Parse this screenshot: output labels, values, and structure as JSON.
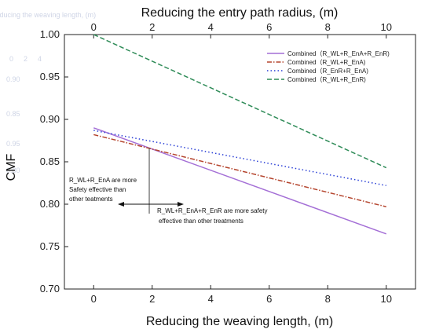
{
  "chart_data": {
    "type": "line",
    "title": "",
    "xlabel": "Reducing the weaving length, (m)",
    "x2label": "Reducing the entry path radius, (m)",
    "ylabel": "CMF",
    "xlim": [
      -1,
      11
    ],
    "ylim": [
      0.7,
      1.0
    ],
    "xticks": [
      0,
      2,
      4,
      6,
      8,
      10
    ],
    "yticks": [
      0.7,
      0.75,
      0.8,
      0.85,
      0.9,
      0.95,
      1.0
    ],
    "xtick_labels": [
      "0",
      "2",
      "4",
      "6",
      "8",
      "10"
    ],
    "ytick_labels": [
      "0.70",
      "0.75",
      "0.80",
      "0.85",
      "0.90",
      "0.95",
      "1.00"
    ],
    "grid": false,
    "legend": "top-right",
    "series": [
      {
        "name": "Combined（R_WL+R_EnA+R_EnR)",
        "color": "#a46fd6",
        "dash": "solid",
        "x": [
          0,
          10
        ],
        "y": [
          0.89,
          0.765
        ]
      },
      {
        "name": "Combined（R_WL+R_EnA)",
        "color": "#b5462f",
        "dash": "dashdot",
        "x": [
          0,
          10
        ],
        "y": [
          0.882,
          0.797
        ]
      },
      {
        "name": "Combined（R_EnR+R_EnA)",
        "color": "#2a3fd6",
        "dash": "dot",
        "x": [
          0,
          10
        ],
        "y": [
          0.887,
          0.822
        ]
      },
      {
        "name": "Combined（R_WL+R_EnR)",
        "color": "#2e8b57",
        "dash": "dash",
        "x": [
          0,
          10
        ],
        "y": [
          1.0,
          0.843
        ]
      }
    ],
    "annotations": [
      {
        "lines": [
          "R_WL+R_EnA are more",
          "Safety effective than",
          "other teatments"
        ]
      },
      {
        "lines": [
          "R_WL+R_EnA+R_EnR are more safety",
          "effective than other treatments"
        ]
      }
    ],
    "marker_x": 1.9
  },
  "faint_text": [
    "Reducing the weaving length, (m)",
    "0",
    "2",
    "4",
    "0.90",
    "0.85",
    "0.95",
    "0.80"
  ]
}
